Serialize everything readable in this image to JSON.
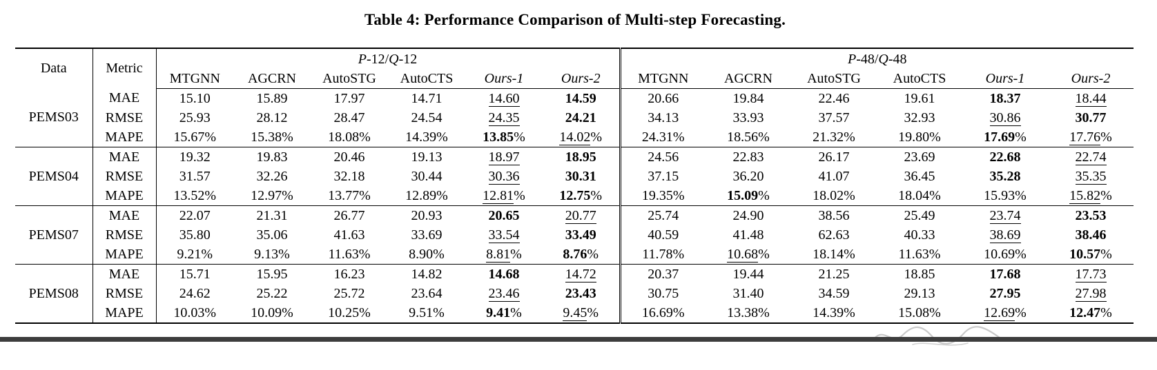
{
  "title": "Table 4: Performance Comparison of Multi-step Forecasting.",
  "header": {
    "data_col": "Data",
    "metric_col": "Metric",
    "group_left": {
      "label": "P-12/Q-12",
      "parts": [
        {
          "t": "P",
          "i": true
        },
        {
          "t": "-12/",
          "i": false
        },
        {
          "t": "Q",
          "i": true
        },
        {
          "t": "-12",
          "i": false
        }
      ]
    },
    "group_right": {
      "label": "P-48/Q-48",
      "parts": [
        {
          "t": "P",
          "i": true
        },
        {
          "t": "-48/",
          "i": false
        },
        {
          "t": "Q",
          "i": true
        },
        {
          "t": "-48",
          "i": false
        }
      ]
    },
    "models": [
      {
        "name": "MTGNN",
        "italic": false
      },
      {
        "name": "AGCRN",
        "italic": false
      },
      {
        "name": "AutoSTG",
        "italic": false
      },
      {
        "name": "AutoCTS",
        "italic": false
      },
      {
        "name": "Ours-1",
        "italic": true
      },
      {
        "name": "Ours-2",
        "italic": true
      }
    ]
  },
  "style_legend": {
    "b": "bold (best)",
    "u": "underline (second best)"
  },
  "datasets": [
    {
      "name": "PEMS03",
      "rows": [
        {
          "metric": "MAE",
          "pct": false,
          "left": [
            [
              "15.10",
              ""
            ],
            [
              "15.89",
              ""
            ],
            [
              "17.97",
              ""
            ],
            [
              "14.71",
              ""
            ],
            [
              "14.60",
              "u"
            ],
            [
              "14.59",
              "b"
            ]
          ],
          "right": [
            [
              "20.66",
              ""
            ],
            [
              "19.84",
              ""
            ],
            [
              "22.46",
              ""
            ],
            [
              "19.61",
              ""
            ],
            [
              "18.37",
              "b"
            ],
            [
              "18.44",
              "u"
            ]
          ]
        },
        {
          "metric": "RMSE",
          "pct": false,
          "left": [
            [
              "25.93",
              ""
            ],
            [
              "28.12",
              ""
            ],
            [
              "28.47",
              ""
            ],
            [
              "24.54",
              ""
            ],
            [
              "24.35",
              "u"
            ],
            [
              "24.21",
              "b"
            ]
          ],
          "right": [
            [
              "34.13",
              ""
            ],
            [
              "33.93",
              ""
            ],
            [
              "37.57",
              ""
            ],
            [
              "32.93",
              ""
            ],
            [
              "30.86",
              "u"
            ],
            [
              "30.77",
              "b"
            ]
          ]
        },
        {
          "metric": "MAPE",
          "pct": true,
          "left": [
            [
              "15.67",
              ""
            ],
            [
              "15.38",
              ""
            ],
            [
              "18.08",
              ""
            ],
            [
              "14.39",
              ""
            ],
            [
              "13.85",
              "b"
            ],
            [
              "14.02",
              "u"
            ]
          ],
          "right": [
            [
              "24.31",
              ""
            ],
            [
              "18.56",
              ""
            ],
            [
              "21.32",
              ""
            ],
            [
              "19.80",
              ""
            ],
            [
              "17.69",
              "b"
            ],
            [
              "17.76",
              "u"
            ]
          ]
        }
      ]
    },
    {
      "name": "PEMS04",
      "rows": [
        {
          "metric": "MAE",
          "pct": false,
          "left": [
            [
              "19.32",
              ""
            ],
            [
              "19.83",
              ""
            ],
            [
              "20.46",
              ""
            ],
            [
              "19.13",
              ""
            ],
            [
              "18.97",
              "u"
            ],
            [
              "18.95",
              "b"
            ]
          ],
          "right": [
            [
              "24.56",
              ""
            ],
            [
              "22.83",
              ""
            ],
            [
              "26.17",
              ""
            ],
            [
              "23.69",
              ""
            ],
            [
              "22.68",
              "b"
            ],
            [
              "22.74",
              "u"
            ]
          ]
        },
        {
          "metric": "RMSE",
          "pct": false,
          "left": [
            [
              "31.57",
              ""
            ],
            [
              "32.26",
              ""
            ],
            [
              "32.18",
              ""
            ],
            [
              "30.44",
              ""
            ],
            [
              "30.36",
              "u"
            ],
            [
              "30.31",
              "b"
            ]
          ],
          "right": [
            [
              "37.15",
              ""
            ],
            [
              "36.20",
              ""
            ],
            [
              "41.07",
              ""
            ],
            [
              "36.45",
              ""
            ],
            [
              "35.28",
              "b"
            ],
            [
              "35.35",
              "u"
            ]
          ]
        },
        {
          "metric": "MAPE",
          "pct": true,
          "left": [
            [
              "13.52",
              ""
            ],
            [
              "12.97",
              ""
            ],
            [
              "13.77",
              ""
            ],
            [
              "12.89",
              ""
            ],
            [
              "12.81",
              "u"
            ],
            [
              "12.75",
              "b"
            ]
          ],
          "right": [
            [
              "19.35",
              ""
            ],
            [
              "15.09",
              "b"
            ],
            [
              "18.02",
              ""
            ],
            [
              "18.04",
              ""
            ],
            [
              "15.93",
              ""
            ],
            [
              "15.82",
              "u"
            ]
          ]
        }
      ]
    },
    {
      "name": "PEMS07",
      "rows": [
        {
          "metric": "MAE",
          "pct": false,
          "left": [
            [
              "22.07",
              ""
            ],
            [
              "21.31",
              ""
            ],
            [
              "26.77",
              ""
            ],
            [
              "20.93",
              ""
            ],
            [
              "20.65",
              "b"
            ],
            [
              "20.77",
              "u"
            ]
          ],
          "right": [
            [
              "25.74",
              ""
            ],
            [
              "24.90",
              ""
            ],
            [
              "38.56",
              ""
            ],
            [
              "25.49",
              ""
            ],
            [
              "23.74",
              "u"
            ],
            [
              "23.53",
              "b"
            ]
          ]
        },
        {
          "metric": "RMSE",
          "pct": false,
          "left": [
            [
              "35.80",
              ""
            ],
            [
              "35.06",
              ""
            ],
            [
              "41.63",
              ""
            ],
            [
              "33.69",
              ""
            ],
            [
              "33.54",
              "u"
            ],
            [
              "33.49",
              "b"
            ]
          ],
          "right": [
            [
              "40.59",
              ""
            ],
            [
              "41.48",
              ""
            ],
            [
              "62.63",
              ""
            ],
            [
              "40.33",
              ""
            ],
            [
              "38.69",
              "u"
            ],
            [
              "38.46",
              "b"
            ]
          ]
        },
        {
          "metric": "MAPE",
          "pct": true,
          "left": [
            [
              "9.21",
              ""
            ],
            [
              "9.13",
              ""
            ],
            [
              "11.63",
              ""
            ],
            [
              "8.90",
              ""
            ],
            [
              "8.81",
              "u"
            ],
            [
              "8.76",
              "b"
            ]
          ],
          "right": [
            [
              "11.78",
              ""
            ],
            [
              "10.68",
              "u"
            ],
            [
              "18.14",
              ""
            ],
            [
              "11.63",
              ""
            ],
            [
              "10.69",
              ""
            ],
            [
              "10.57",
              "b"
            ]
          ]
        }
      ]
    },
    {
      "name": "PEMS08",
      "rows": [
        {
          "metric": "MAE",
          "pct": false,
          "left": [
            [
              "15.71",
              ""
            ],
            [
              "15.95",
              ""
            ],
            [
              "16.23",
              ""
            ],
            [
              "14.82",
              ""
            ],
            [
              "14.68",
              "b"
            ],
            [
              "14.72",
              "u"
            ]
          ],
          "right": [
            [
              "20.37",
              ""
            ],
            [
              "19.44",
              ""
            ],
            [
              "21.25",
              ""
            ],
            [
              "18.85",
              ""
            ],
            [
              "17.68",
              "b"
            ],
            [
              "17.73",
              "u"
            ]
          ]
        },
        {
          "metric": "RMSE",
          "pct": false,
          "left": [
            [
              "24.62",
              ""
            ],
            [
              "25.22",
              ""
            ],
            [
              "25.72",
              ""
            ],
            [
              "23.64",
              ""
            ],
            [
              "23.46",
              "u"
            ],
            [
              "23.43",
              "b"
            ]
          ],
          "right": [
            [
              "30.75",
              ""
            ],
            [
              "31.40",
              ""
            ],
            [
              "34.59",
              ""
            ],
            [
              "29.13",
              ""
            ],
            [
              "27.95",
              "b"
            ],
            [
              "27.98",
              "u"
            ]
          ]
        },
        {
          "metric": "MAPE",
          "pct": true,
          "left": [
            [
              "10.03",
              ""
            ],
            [
              "10.09",
              ""
            ],
            [
              "10.25",
              ""
            ],
            [
              "9.51",
              ""
            ],
            [
              "9.41",
              "b"
            ],
            [
              "9.45",
              "u"
            ]
          ],
          "right": [
            [
              "16.69",
              ""
            ],
            [
              "13.38",
              ""
            ],
            [
              "14.39",
              ""
            ],
            [
              "15.08",
              ""
            ],
            [
              "12.69",
              "u"
            ],
            [
              "12.47",
              "b"
            ]
          ]
        }
      ]
    }
  ],
  "artifacts": {
    "bottom_bar_color": "#3d3d3d",
    "watermark_color": "#8a8a8a"
  }
}
